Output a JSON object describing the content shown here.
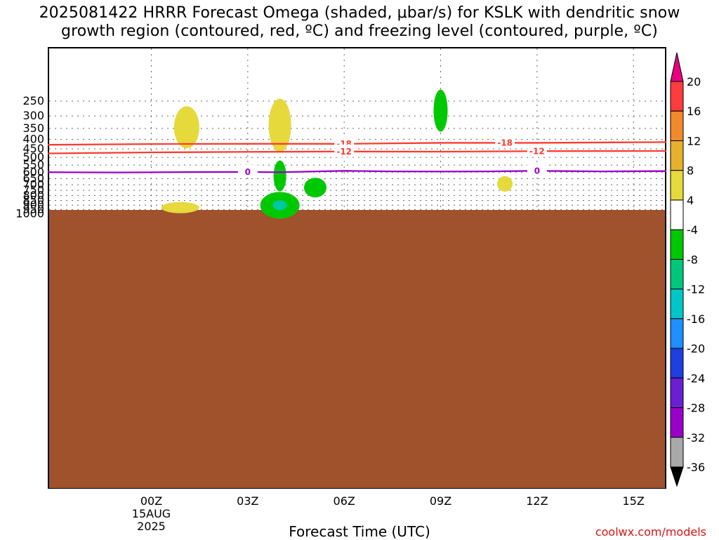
{
  "title": {
    "line1": "2025081422 HRRR Forecast Omega (shaded, μbar/s) for KSLK with dendritic snow",
    "line2": "growth region (contoured, red, ºC) and freezing level (contoured, purple, ºC)"
  },
  "x_axis_label": "Forecast Time (UTC)",
  "credit": "coolwx.com/models",
  "chart_data": {
    "type": "area",
    "title": "2025081422 HRRR Forecast Omega (shaded, μbar/s) for KSLK with dendritic snow growth region (contoured, red, ºC) and freezing level (contoured, purple, ºC)",
    "xlabel": "Forecast Time (UTC)",
    "ylabel": "",
    "yticks": [
      250,
      300,
      350,
      400,
      450,
      500,
      550,
      600,
      650,
      700,
      750,
      800,
      850,
      900,
      950,
      1000
    ],
    "xticks": [
      "00Z",
      "03Z",
      "06Z",
      "09Z",
      "12Z",
      "15Z"
    ],
    "x_date_lines": [
      "15AUG",
      "2025"
    ],
    "ground": {
      "pressure_top": 955,
      "color": "#a0522d"
    },
    "blobs": [
      {
        "name": "omega-blob-yellow-350a",
        "t": 1.1,
        "p": 345,
        "w": 18,
        "h": 30,
        "fill": "#e6d93b"
      },
      {
        "name": "omega-blob-yellow-350b",
        "t": 4.0,
        "p": 337,
        "w": 16,
        "h": 38,
        "fill": "#e6d93b"
      },
      {
        "name": "omega-blob-green-280",
        "t": 9.0,
        "p": 281,
        "w": 10,
        "h": 30,
        "fill": "#00c800"
      },
      {
        "name": "omega-blob-green-620",
        "t": 4.0,
        "p": 628,
        "w": 9,
        "h": 22,
        "fill": "#00c800"
      },
      {
        "name": "omega-blob-green-725",
        "t": 5.1,
        "p": 725,
        "w": 16,
        "h": 14,
        "fill": "#00c800"
      },
      {
        "name": "omega-blob-yellow-700",
        "t": 11.0,
        "p": 693,
        "w": 11,
        "h": 11,
        "fill": "#e6d93b"
      },
      {
        "name": "omega-blob-yellow-930",
        "t": 0.9,
        "p": 928,
        "w": 27,
        "h": 8,
        "fill": "#e6d93b"
      },
      {
        "name": "omega-blob-green-900",
        "t": 4.0,
        "p": 902,
        "w": 28,
        "h": 19,
        "fill": "#00c800"
      },
      {
        "name": "omega-blob-teal-900-core",
        "t": 4.0,
        "p": 902,
        "w": 10,
        "h": 7,
        "fill": "#00c7a2"
      }
    ],
    "lines": [
      {
        "name": "dgz-contour-minus18",
        "color": "#ff3b30",
        "points": [
          [
            -3.2,
            428
          ],
          [
            0,
            424
          ],
          [
            3,
            423
          ],
          [
            6,
            423
          ],
          [
            9,
            418
          ],
          [
            12,
            418
          ],
          [
            15,
            415
          ],
          [
            16.0,
            414
          ]
        ],
        "labels": [
          {
            "t": 6.0,
            "p": 423,
            "text": "-18"
          },
          {
            "t": 11.0,
            "p": 418,
            "text": "-18"
          }
        ]
      },
      {
        "name": "dgz-contour-minus12",
        "color": "#ff3b30",
        "points": [
          [
            -3.2,
            476
          ],
          [
            0,
            470
          ],
          [
            3,
            467
          ],
          [
            6,
            465
          ],
          [
            9,
            466
          ],
          [
            12,
            463
          ],
          [
            15,
            462
          ],
          [
            16.0,
            462
          ]
        ],
        "labels": [
          {
            "t": 6.0,
            "p": 465,
            "text": "-12"
          },
          {
            "t": 12.0,
            "p": 463,
            "text": "-12"
          }
        ]
      },
      {
        "name": "freezing-level-0c",
        "color": "#9b00c8",
        "points": [
          [
            -3.2,
            600
          ],
          [
            -1.0,
            602
          ],
          [
            1.0,
            599
          ],
          [
            3.0,
            598
          ],
          [
            4.0,
            600
          ],
          [
            5.0,
            595
          ],
          [
            6.0,
            590
          ],
          [
            7.5,
            594
          ],
          [
            9.0,
            595
          ],
          [
            10.5,
            594
          ],
          [
            12.0,
            590
          ],
          [
            14.0,
            594
          ],
          [
            16.0,
            592
          ]
        ],
        "labels": [
          {
            "t": 3.0,
            "p": 598,
            "text": "0"
          },
          {
            "t": 12.0,
            "p": 590,
            "text": "0"
          }
        ]
      }
    ],
    "colorbar": {
      "top_color": "#e80080",
      "bottom_color": "#000000",
      "segments": [
        {
          "color": "#ff3b3b"
        },
        {
          "color": "#f08a2a"
        },
        {
          "color": "#e8b02e"
        },
        {
          "color": "#e6d93b"
        },
        {
          "color": "#ffffff"
        },
        {
          "color": "#00c800"
        },
        {
          "color": "#00c77b"
        },
        {
          "color": "#00c7c7"
        },
        {
          "color": "#1e90ff"
        },
        {
          "color": "#1f3fe0"
        },
        {
          "color": "#6a1fd1"
        },
        {
          "color": "#9b00c8"
        },
        {
          "color": "#a9a9a9"
        }
      ],
      "labels": [
        "20",
        "16",
        "12",
        "8",
        "4",
        "-4",
        "-8",
        "-12",
        "-16",
        "-20",
        "-24",
        "-28",
        "-32",
        "-36"
      ]
    }
  }
}
